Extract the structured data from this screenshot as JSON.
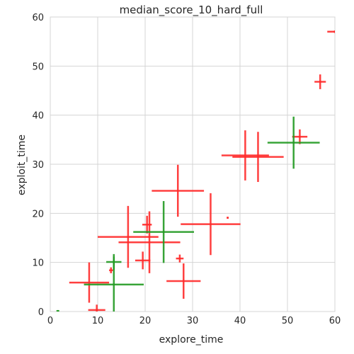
{
  "chart_data": {
    "type": "scatter",
    "title": "median_score_10_hard_full",
    "xlabel": "explore_time",
    "ylabel": "exploit_time",
    "xlim": [
      0,
      60
    ],
    "ylim": [
      0,
      60
    ],
    "xticks": [
      0,
      10,
      20,
      30,
      40,
      50,
      60
    ],
    "yticks": [
      0,
      10,
      20,
      30,
      40,
      50,
      60
    ],
    "grid": true,
    "colors": {
      "red": "#ff2a2a",
      "green": "#229a22"
    },
    "series": [
      {
        "color": "red",
        "points": [
          {
            "x": 8.2,
            "y": 5.9,
            "xerr": [
              4.2,
              4.2
            ],
            "yerr": [
              4.1,
              4.1
            ]
          },
          {
            "x": 9.8,
            "y": 0.3,
            "xerr": [
              1.8,
              1.8
            ],
            "yerr": [
              1.1,
              1.1
            ]
          },
          {
            "x": 12.8,
            "y": 8.4,
            "xerr": [
              0.4,
              0.4
            ],
            "yerr": [
              0.6,
              0.6
            ]
          },
          {
            "x": 16.4,
            "y": 15.2,
            "xerr": [
              6.4,
              6.4
            ],
            "yerr": [
              6.3,
              6.3
            ]
          },
          {
            "x": 20.9,
            "y": 14.1,
            "xerr": [
              6.5,
              6.5
            ],
            "yerr": [
              6.3,
              6.3
            ]
          },
          {
            "x": 19.5,
            "y": 10.4,
            "xerr": [
              1.6,
              1.6
            ],
            "yerr": [
              1.8,
              1.8
            ]
          },
          {
            "x": 20.4,
            "y": 17.7,
            "xerr": [
              1.0,
              1.0
            ],
            "yerr": [
              1.8,
              1.8
            ]
          },
          {
            "x": 26.9,
            "y": 24.6,
            "xerr": [
              5.5,
              5.5
            ],
            "yerr": [
              5.3,
              5.3
            ]
          },
          {
            "x": 27.3,
            "y": 10.8,
            "xerr": [
              0.8,
              0.8
            ],
            "yerr": [
              0.8,
              0.8
            ]
          },
          {
            "x": 28.1,
            "y": 6.2,
            "xerr": [
              3.6,
              3.6
            ],
            "yerr": [
              3.6,
              3.6
            ]
          },
          {
            "x": 33.8,
            "y": 17.8,
            "xerr": [
              6.3,
              6.3
            ],
            "yerr": [
              6.3,
              6.3
            ]
          },
          {
            "x": 37.4,
            "y": 19.1,
            "xerr": [
              0.2,
              0.2
            ],
            "yerr": [
              0.2,
              0.2
            ]
          },
          {
            "x": 41.1,
            "y": 31.8,
            "xerr": [
              5.0,
              5.0
            ],
            "yerr": [
              5.1,
              5.1
            ]
          },
          {
            "x": 43.8,
            "y": 31.5,
            "xerr": [
              5.4,
              5.4
            ],
            "yerr": [
              5.1,
              5.1
            ]
          },
          {
            "x": 52.6,
            "y": 35.6,
            "xerr": [
              1.6,
              1.6
            ],
            "yerr": [
              1.5,
              1.5
            ]
          },
          {
            "x": 56.9,
            "y": 46.8,
            "xerr": [
              1.2,
              1.2
            ],
            "yerr": [
              1.5,
              1.5
            ]
          },
          {
            "x": 60.0,
            "y": 57.0,
            "xerr": [
              1.6,
              1.6
            ],
            "yerr": [
              0.0,
              0.0
            ]
          }
        ]
      },
      {
        "color": "green",
        "points": [
          {
            "x": 1.6,
            "y": 0.1,
            "xerr": [
              0.3,
              0.3
            ],
            "yerr": [
              0.2,
              0.2
            ]
          },
          {
            "x": 13.4,
            "y": 5.5,
            "xerr": [
              6.3,
              6.3
            ],
            "yerr": [
              5.7,
              5.7
            ]
          },
          {
            "x": 13.4,
            "y": 10.1,
            "xerr": [
              1.6,
              1.6
            ],
            "yerr": [
              1.6,
              1.6
            ]
          },
          {
            "x": 23.9,
            "y": 16.2,
            "xerr": [
              6.4,
              6.4
            ],
            "yerr": [
              6.3,
              6.3
            ]
          },
          {
            "x": 51.3,
            "y": 34.4,
            "xerr": [
              5.5,
              5.5
            ],
            "yerr": [
              5.3,
              5.3
            ]
          }
        ]
      }
    ]
  }
}
